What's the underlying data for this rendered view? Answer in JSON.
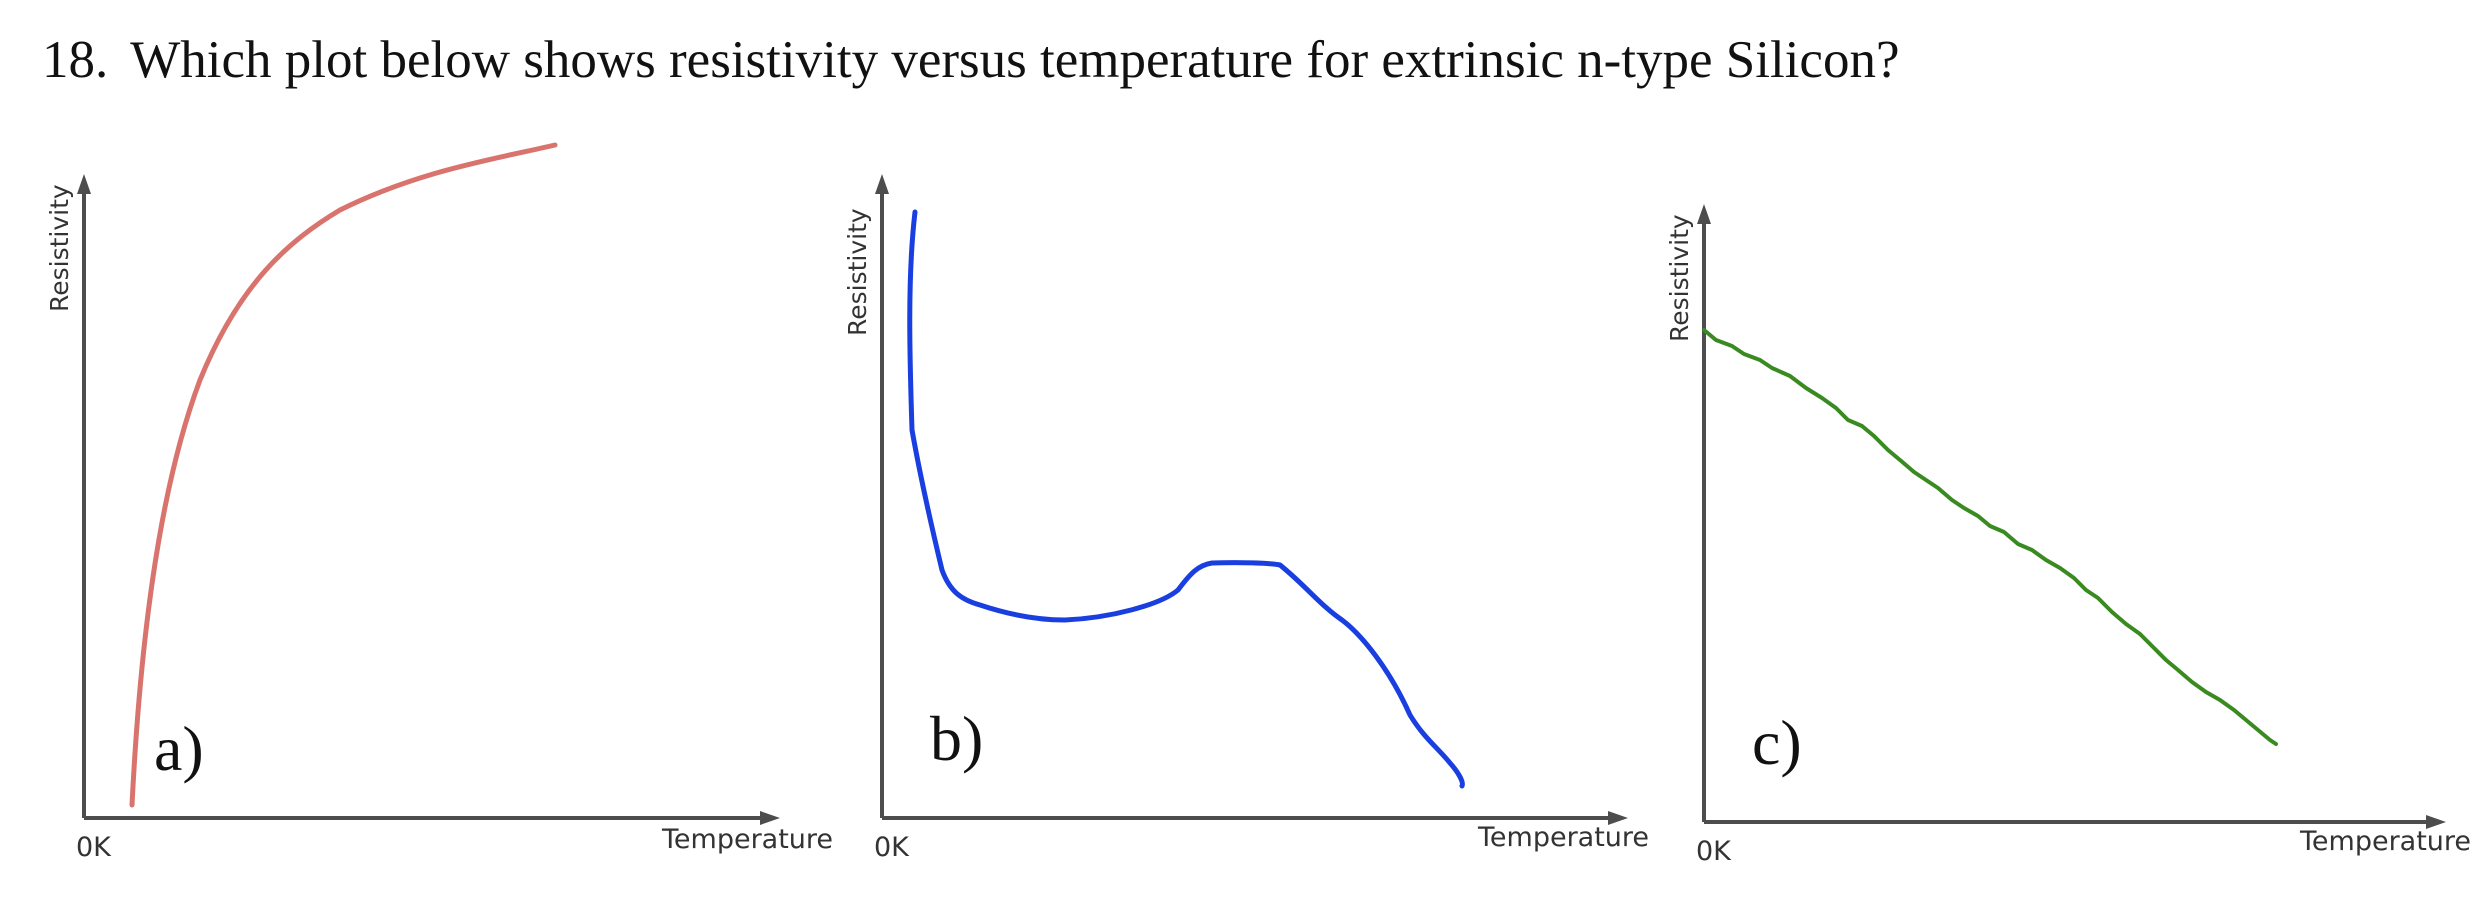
{
  "question": {
    "number": "18.",
    "text": "Which plot below shows resistivity versus temperature for extrinsic n-type Silicon?"
  },
  "plots": [
    {
      "label": "a)",
      "ylabel": "Resistivity",
      "xlabel": "Temperature",
      "origin_label": "0K",
      "color": "#d9736d"
    },
    {
      "label": "b)",
      "ylabel": "Resistivity",
      "xlabel": "Temperature",
      "origin_label": "0K",
      "color": "#1a3fe0"
    },
    {
      "label": "c)",
      "ylabel": "Resistivity",
      "xlabel": "Temperature",
      "origin_label": "0K",
      "color": "#3a8a22"
    }
  ],
  "chart_data": [
    {
      "type": "line",
      "title": "a)",
      "xlabel": "Temperature",
      "ylabel": "Resistivity",
      "x_tick_labels": [
        "0K"
      ],
      "grid": false,
      "series": [
        {
          "x": [
            0.07,
            0.1,
            0.17,
            0.27,
            0.36,
            0.5,
            0.68
          ],
          "y": [
            0.02,
            0.45,
            0.71,
            0.85,
            0.91,
            0.95,
            0.99
          ]
        }
      ]
    },
    {
      "type": "line",
      "title": "b)",
      "xlabel": "Temperature",
      "ylabel": "Resistivity",
      "x_tick_labels": [
        "0K"
      ],
      "grid": false,
      "series": [
        {
          "x": [
            0.04,
            0.05,
            0.07,
            0.1,
            0.2,
            0.3,
            0.41,
            0.51,
            0.6,
            0.75,
            0.77
          ],
          "y": [
            1.0,
            0.64,
            0.44,
            0.36,
            0.32,
            0.36,
            0.42,
            0.41,
            0.33,
            0.16,
            0.08
          ]
        }
      ]
    },
    {
      "type": "line",
      "title": "c)",
      "xlabel": "Temperature",
      "ylabel": "Resistivity",
      "x_tick_labels": [
        "0K"
      ],
      "grid": false,
      "series": [
        {
          "x": [
            0.0,
            0.2,
            0.4,
            0.6,
            0.8
          ],
          "y": [
            0.83,
            0.68,
            0.5,
            0.33,
            0.12
          ]
        }
      ]
    }
  ]
}
